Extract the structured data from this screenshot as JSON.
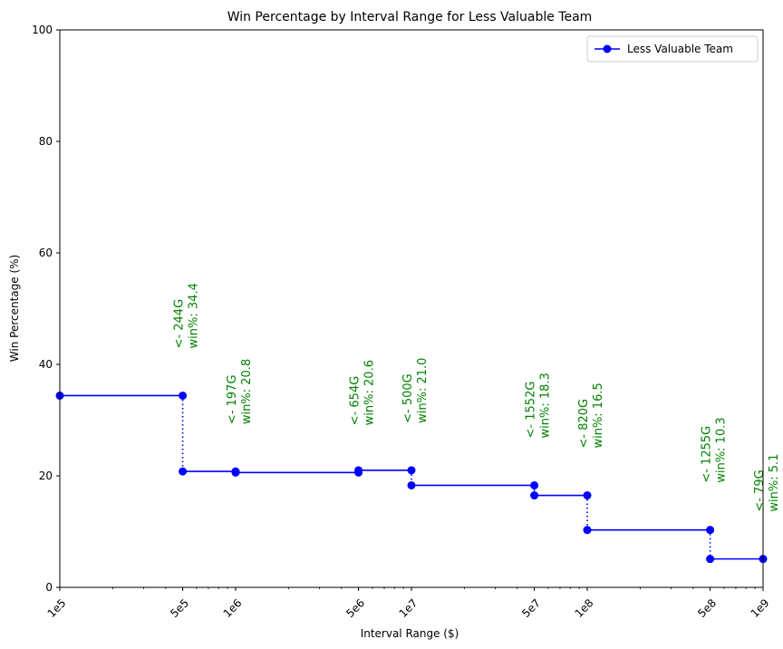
{
  "chart_data": {
    "type": "line",
    "title": "Win Percentage by Interval Range for Less Valuable Team",
    "xlabel": "Interval Range ($)",
    "ylabel": "Win Percentage (%)",
    "xscale": "log",
    "xlim": [
      100000,
      1000000000
    ],
    "ylim": [
      0,
      100
    ],
    "grid": false,
    "legend_position": "top-right",
    "line_color": "#0000ff",
    "annotation_color": "#008000",
    "x_ticks": [
      {
        "value": 100000,
        "label": "1e5"
      },
      {
        "value": 500000,
        "label": "5e5"
      },
      {
        "value": 1000000,
        "label": "1e6"
      },
      {
        "value": 5000000,
        "label": "5e6"
      },
      {
        "value": 10000000,
        "label": "1e7"
      },
      {
        "value": 50000000,
        "label": "5e7"
      },
      {
        "value": 100000000,
        "label": "1e8"
      },
      {
        "value": 500000000,
        "label": "5e8"
      },
      {
        "value": 1000000000,
        "label": "1e9"
      }
    ],
    "y_ticks": [
      {
        "value": 0,
        "label": "0"
      },
      {
        "value": 20,
        "label": "20"
      },
      {
        "value": 40,
        "label": "40"
      },
      {
        "value": 60,
        "label": "60"
      },
      {
        "value": 80,
        "label": "80"
      },
      {
        "value": 100,
        "label": "100"
      }
    ],
    "series": [
      {
        "name": "Less Valuable Team",
        "segments": [
          {
            "x_start": 100000,
            "x_end": 500000,
            "win_pct": 34.4
          },
          {
            "x_start": 500000,
            "x_end": 1000000,
            "win_pct": 20.8
          },
          {
            "x_start": 1000000,
            "x_end": 5000000,
            "win_pct": 20.6
          },
          {
            "x_start": 5000000,
            "x_end": 10000000,
            "win_pct": 21.0
          },
          {
            "x_start": 10000000,
            "x_end": 50000000,
            "win_pct": 18.3
          },
          {
            "x_start": 50000000,
            "x_end": 100000000,
            "win_pct": 16.5
          },
          {
            "x_start": 100000000,
            "x_end": 500000000,
            "win_pct": 10.3
          },
          {
            "x_start": 500000000,
            "x_end": 1000000000,
            "win_pct": 5.1
          }
        ]
      }
    ],
    "annotations": [
      {
        "x": 500000,
        "y": 34.4,
        "line1": "<- 244G",
        "line2": "win%: 34.4"
      },
      {
        "x": 1000000,
        "y": 20.8,
        "line1": "<- 197G",
        "line2": "win%: 20.8"
      },
      {
        "x": 5000000,
        "y": 20.6,
        "line1": "<- 654G",
        "line2": "win%: 20.6"
      },
      {
        "x": 10000000,
        "y": 21.0,
        "line1": "<- 500G",
        "line2": "win%: 21.0"
      },
      {
        "x": 50000000,
        "y": 18.3,
        "line1": "<- 1552G",
        "line2": "win%: 18.3"
      },
      {
        "x": 100000000,
        "y": 16.5,
        "line1": "<- 820G",
        "line2": "win%: 16.5"
      },
      {
        "x": 500000000,
        "y": 10.3,
        "line1": "<- 1255G",
        "line2": "win%: 10.3"
      },
      {
        "x": 1000000000,
        "y": 5.1,
        "line1": "<- 79G",
        "line2": "win%: 5.1"
      }
    ]
  }
}
